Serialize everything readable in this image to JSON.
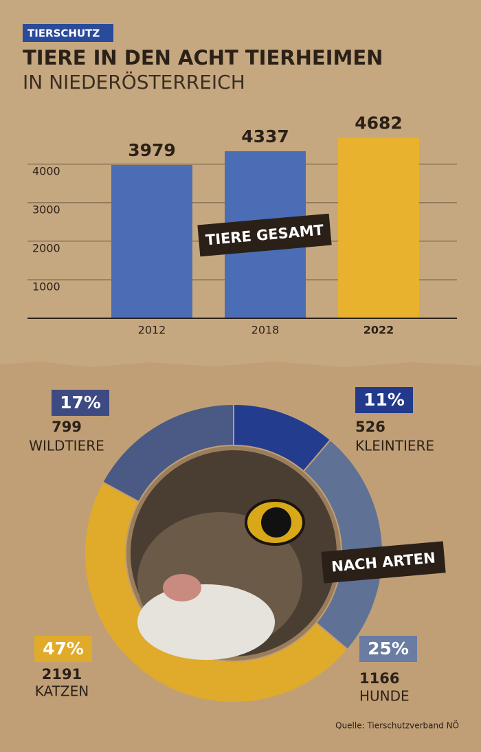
{
  "header": {
    "tag": "TIERSCHUTZ",
    "title": "TIERE IN DEN ACHT TIERHEIMEN",
    "subtitle": "IN NIEDERÖSTERREICH"
  },
  "chart_data": [
    {
      "type": "bar",
      "annotation": "TIERE GESAMT",
      "categories": [
        "2012",
        "2018",
        "2022"
      ],
      "values": [
        3979,
        4337,
        4682
      ],
      "colors": [
        "#4a6db5",
        "#4a6db5",
        "#e8b22e"
      ],
      "ylim": [
        0,
        4800
      ],
      "yticks": [
        1000,
        2000,
        3000,
        4000
      ],
      "grid": true
    },
    {
      "type": "donut",
      "annotation": "NACH ARTEN",
      "categories": [
        "KLEINTIERE",
        "HUNDE",
        "KATZEN",
        "WILDTIERE"
      ],
      "values": [
        526,
        1166,
        2191,
        799
      ],
      "shares": [
        11,
        25,
        47,
        17
      ],
      "share_labels": [
        "11%",
        "25%",
        "47%",
        "17%"
      ],
      "colors": [
        "#233c8e",
        "#5f7296",
        "#e0aa2a",
        "#4a5a84"
      ],
      "badge_colors": [
        "#233a8c",
        "#6a7ca2",
        "#e0aa2a",
        "#3e4b83"
      ]
    }
  ],
  "source": "Quelle: Tierschutzverband NÖ"
}
